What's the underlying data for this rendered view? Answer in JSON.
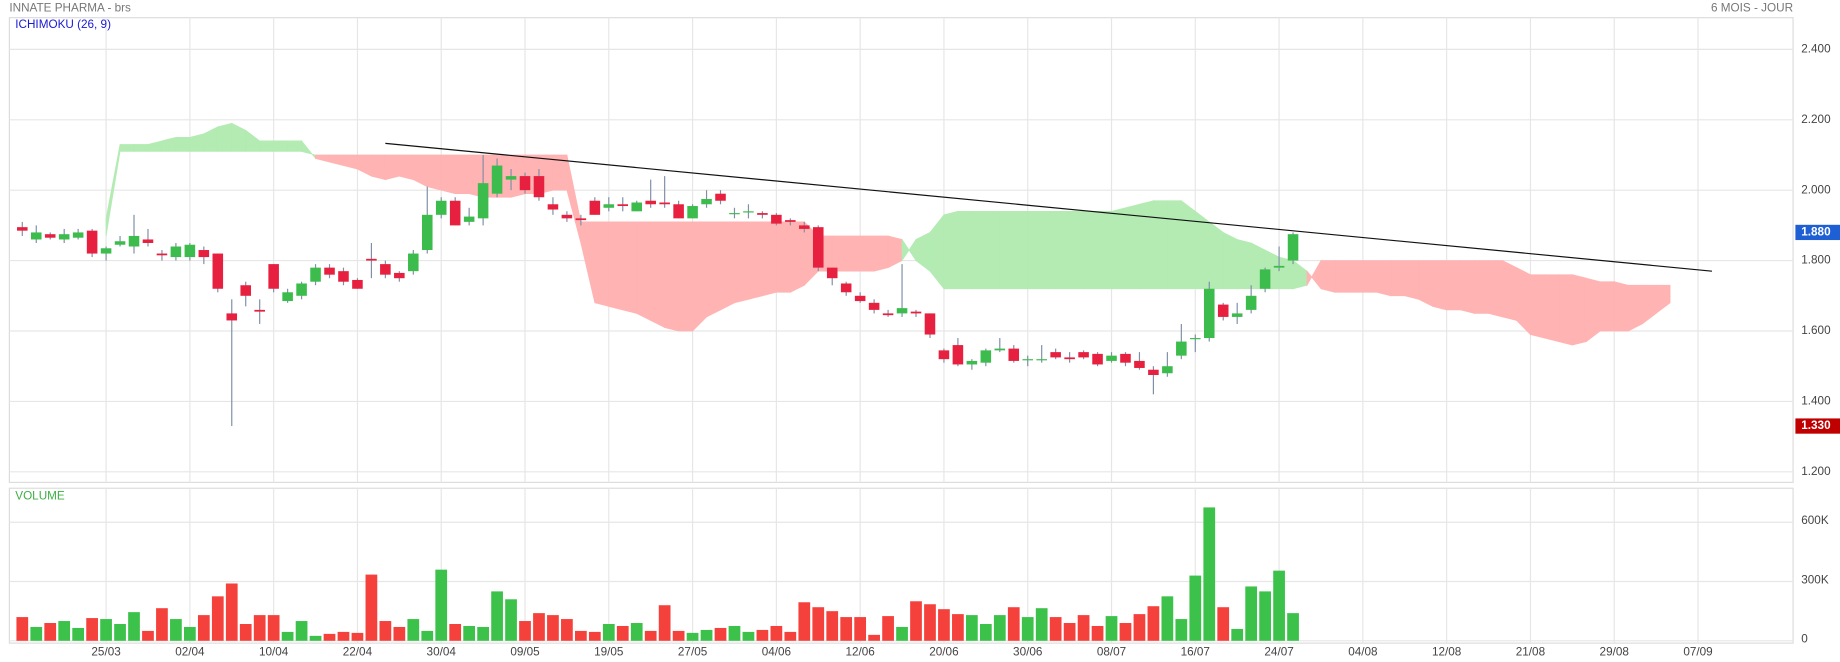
{
  "header": {
    "title": "INNATE PHARMA - brs",
    "period": "6 MOIS - JOUR"
  },
  "chart_data": {
    "type": "candlestick",
    "title": "ICHIMOKU (26, 9)",
    "categories": [
      null,
      null,
      null,
      null,
      null,
      null,
      "25/03",
      null,
      null,
      null,
      null,
      null,
      "02/04",
      null,
      null,
      null,
      null,
      null,
      "10/04",
      null,
      null,
      null,
      null,
      null,
      "22/04",
      null,
      null,
      null,
      null,
      null,
      "30/04",
      null,
      null,
      null,
      null,
      null,
      "09/05",
      null,
      null,
      null,
      null,
      null,
      "19/05",
      null,
      null,
      null,
      null,
      null,
      "27/05",
      null,
      null,
      null,
      null,
      null,
      "04/06",
      null,
      null,
      null,
      null,
      null,
      "12/06",
      null,
      null,
      null,
      null,
      null,
      "20/06",
      null,
      null,
      null,
      null,
      null,
      "30/06",
      null,
      null,
      null,
      null,
      null,
      "08/07",
      null,
      null,
      null,
      null,
      null,
      "16/07",
      null,
      null,
      null,
      null,
      null,
      "24/07",
      null,
      null,
      null,
      null,
      null,
      "04/08",
      null,
      null,
      null,
      null,
      null,
      "12/08",
      null,
      null,
      null,
      null,
      null,
      "21/08",
      null,
      null,
      null,
      null,
      null,
      "29/08",
      null,
      null,
      null,
      null,
      null,
      "07/09",
      null
    ],
    "open": [
      1.895,
      1.86,
      1.875,
      1.86,
      1.865,
      1.885,
      1.82,
      1.845,
      1.84,
      1.86,
      1.82,
      1.81,
      1.81,
      1.83,
      1.82,
      1.65,
      1.73,
      1.66,
      1.79,
      1.685,
      1.7,
      1.74,
      1.78,
      1.77,
      1.745,
      1.805,
      1.79,
      1.765,
      1.77,
      1.83,
      1.93,
      1.97,
      1.91,
      1.92,
      1.99,
      2.03,
      2.04,
      2.04,
      1.96,
      1.93,
      1.92,
      1.97,
      1.95,
      1.96,
      1.94,
      1.97,
      1.965,
      1.96,
      1.92,
      1.96,
      1.99,
      1.935,
      1.94,
      1.935,
      1.93,
      1.915,
      1.9,
      1.895,
      1.78,
      1.735,
      1.7,
      1.68,
      1.65,
      1.65,
      1.655,
      1.65,
      1.545,
      1.56,
      1.505,
      1.51,
      1.545,
      1.55,
      1.52,
      1.52,
      1.54,
      1.525,
      1.54,
      1.535,
      1.515,
      1.535,
      1.515,
      1.49,
      1.48,
      1.53,
      1.58,
      1.58,
      1.675,
      1.64,
      1.66,
      1.72,
      1.78,
      1.8,
      null,
      null,
      null,
      null,
      null,
      null,
      null,
      null,
      null,
      null,
      null,
      null,
      null,
      null,
      null,
      null,
      null,
      null,
      null,
      null,
      null,
      null,
      null,
      null,
      null,
      null,
      null,
      null,
      null,
      null
    ],
    "high": [
      1.91,
      1.9,
      1.88,
      1.89,
      1.89,
      1.89,
      1.84,
      1.87,
      1.93,
      1.89,
      1.83,
      1.85,
      1.85,
      1.84,
      1.82,
      1.69,
      1.74,
      1.69,
      1.79,
      1.72,
      1.74,
      1.79,
      1.79,
      1.78,
      1.75,
      1.85,
      1.8,
      1.77,
      1.83,
      2.01,
      1.98,
      1.98,
      1.95,
      2.1,
      2.09,
      2.06,
      2.05,
      2.06,
      1.98,
      1.94,
      1.93,
      1.98,
      1.98,
      1.98,
      1.97,
      2.03,
      2.04,
      1.97,
      1.96,
      2.0,
      2.0,
      1.95,
      1.96,
      1.94,
      1.935,
      1.92,
      1.91,
      1.9,
      1.78,
      1.74,
      1.71,
      1.69,
      1.66,
      1.79,
      1.66,
      1.65,
      1.55,
      1.58,
      1.52,
      1.55,
      1.58,
      1.56,
      1.53,
      1.56,
      1.55,
      1.54,
      1.545,
      1.54,
      1.54,
      1.54,
      1.54,
      1.5,
      1.54,
      1.62,
      1.59,
      1.74,
      1.68,
      1.68,
      1.73,
      1.78,
      1.84,
      1.88,
      null,
      null,
      null,
      null,
      null,
      null,
      null,
      null,
      null,
      null,
      null,
      null,
      null,
      null,
      null,
      null,
      null,
      null,
      null,
      null,
      null,
      null,
      null,
      null,
      null,
      null,
      null,
      null,
      null,
      null
    ],
    "low": [
      1.87,
      1.85,
      1.86,
      1.85,
      1.86,
      1.81,
      1.8,
      1.84,
      1.82,
      1.84,
      1.8,
      1.8,
      1.8,
      1.79,
      1.71,
      1.33,
      1.67,
      1.62,
      1.71,
      1.68,
      1.69,
      1.73,
      1.75,
      1.73,
      1.72,
      1.75,
      1.75,
      1.74,
      1.76,
      1.82,
      1.92,
      1.9,
      1.9,
      1.9,
      1.98,
      2.0,
      1.99,
      1.97,
      1.93,
      1.91,
      1.9,
      1.93,
      1.94,
      1.94,
      1.94,
      1.95,
      1.95,
      1.92,
      1.92,
      1.95,
      1.96,
      1.92,
      1.92,
      1.92,
      1.9,
      1.9,
      1.88,
      1.77,
      1.73,
      1.7,
      1.68,
      1.65,
      1.64,
      1.64,
      1.64,
      1.58,
      1.51,
      1.5,
      1.49,
      1.5,
      1.54,
      1.51,
      1.5,
      1.51,
      1.52,
      1.51,
      1.52,
      1.5,
      1.51,
      1.5,
      1.49,
      1.42,
      1.47,
      1.52,
      1.54,
      1.57,
      1.63,
      1.62,
      1.65,
      1.71,
      1.77,
      1.79,
      null,
      null,
      null,
      null,
      null,
      null,
      null,
      null,
      null,
      null,
      null,
      null,
      null,
      null,
      null,
      null,
      null,
      null,
      null,
      null,
      null,
      null,
      null,
      null,
      null,
      null,
      null,
      null,
      null,
      null
    ],
    "close": [
      1.885,
      1.88,
      1.865,
      1.875,
      1.88,
      1.82,
      1.835,
      1.855,
      1.87,
      1.85,
      1.815,
      1.84,
      1.845,
      1.81,
      1.72,
      1.63,
      1.7,
      1.655,
      1.72,
      1.71,
      1.735,
      1.78,
      1.76,
      1.74,
      1.72,
      1.8,
      1.76,
      1.75,
      1.82,
      1.93,
      1.97,
      1.9,
      1.925,
      2.02,
      2.07,
      2.04,
      2.0,
      1.98,
      1.945,
      1.92,
      1.915,
      1.93,
      1.96,
      1.955,
      1.965,
      1.96,
      1.96,
      1.92,
      1.955,
      1.975,
      1.97,
      1.935,
      1.94,
      1.93,
      1.905,
      1.91,
      1.89,
      1.78,
      1.75,
      1.71,
      1.685,
      1.66,
      1.645,
      1.665,
      1.65,
      1.59,
      1.52,
      1.505,
      1.515,
      1.545,
      1.55,
      1.515,
      1.52,
      1.52,
      1.525,
      1.52,
      1.525,
      1.505,
      1.53,
      1.51,
      1.495,
      1.475,
      1.5,
      1.57,
      1.58,
      1.72,
      1.64,
      1.65,
      1.7,
      1.775,
      1.785,
      1.875,
      null,
      null,
      null,
      null,
      null,
      null,
      null,
      null,
      null,
      null,
      null,
      null,
      null,
      null,
      null,
      null,
      null,
      null,
      null,
      null,
      null,
      null,
      null,
      null,
      null,
      null,
      null,
      null,
      null,
      null
    ],
    "cloud": {
      "span_a": [
        null,
        null,
        null,
        null,
        null,
        null,
        1.92,
        2.13,
        2.13,
        2.13,
        2.14,
        2.15,
        2.15,
        2.16,
        2.18,
        2.19,
        2.17,
        2.14,
        2.14,
        2.14,
        2.14,
        2.09,
        2.08,
        2.07,
        2.06,
        2.04,
        2.03,
        2.04,
        2.03,
        2.01,
        2.0,
        1.99,
        1.99,
        1.98,
        1.98,
        1.98,
        1.99,
        1.99,
        2.0,
        2.0,
        1.85,
        1.68,
        1.67,
        1.66,
        1.65,
        1.63,
        1.61,
        1.6,
        1.6,
        1.64,
        1.66,
        1.68,
        1.69,
        1.7,
        1.71,
        1.71,
        1.73,
        1.77,
        1.77,
        1.77,
        1.77,
        1.77,
        1.78,
        1.8,
        1.86,
        1.88,
        1.93,
        1.94,
        1.94,
        1.94,
        1.94,
        1.94,
        1.94,
        1.94,
        1.94,
        1.94,
        1.94,
        1.94,
        1.94,
        1.95,
        1.96,
        1.97,
        1.97,
        1.97,
        1.94,
        1.91,
        1.88,
        1.86,
        1.85,
        1.83,
        1.81,
        1.8,
        1.77,
        1.72,
        1.71,
        1.71,
        1.71,
        1.71,
        1.7,
        1.7,
        1.69,
        1.67,
        1.66,
        1.66,
        1.65,
        1.65,
        1.64,
        1.63,
        1.59,
        1.58,
        1.57,
        1.56,
        1.57,
        1.6,
        1.6,
        1.6,
        1.62,
        1.65,
        1.68,
        null,
        null,
        null
      ],
      "span_b": [
        null,
        null,
        null,
        null,
        null,
        null,
        1.87,
        2.11,
        2.11,
        2.11,
        2.11,
        2.11,
        2.11,
        2.11,
        2.11,
        2.11,
        2.11,
        2.11,
        2.11,
        2.11,
        2.11,
        2.1,
        2.1,
        2.1,
        2.1,
        2.1,
        2.1,
        2.1,
        2.1,
        2.1,
        2.1,
        2.1,
        2.1,
        2.1,
        2.1,
        2.1,
        2.1,
        2.1,
        2.1,
        2.1,
        1.91,
        1.91,
        1.91,
        1.91,
        1.91,
        1.91,
        1.91,
        1.91,
        1.91,
        1.91,
        1.91,
        1.91,
        1.91,
        1.91,
        1.91,
        1.91,
        1.91,
        1.87,
        1.87,
        1.87,
        1.87,
        1.87,
        1.87,
        1.86,
        1.8,
        1.77,
        1.72,
        1.72,
        1.72,
        1.72,
        1.72,
        1.72,
        1.72,
        1.72,
        1.72,
        1.72,
        1.72,
        1.72,
        1.72,
        1.72,
        1.72,
        1.72,
        1.72,
        1.72,
        1.72,
        1.72,
        1.72,
        1.72,
        1.72,
        1.72,
        1.72,
        1.72,
        1.73,
        1.8,
        1.8,
        1.8,
        1.8,
        1.8,
        1.8,
        1.8,
        1.8,
        1.8,
        1.8,
        1.8,
        1.8,
        1.8,
        1.8,
        1.78,
        1.76,
        1.76,
        1.76,
        1.76,
        1.75,
        1.74,
        1.74,
        1.73,
        1.73,
        1.73,
        1.73,
        null,
        null,
        null
      ]
    },
    "colors": {
      "up": "#3cbc4c",
      "down": "#e8203f",
      "cloud_up": "#b3ebb3",
      "cloud_down": "#ffb3b3",
      "trendline": "#111111"
    },
    "ylim": [
      1.17,
      2.49
    ],
    "yticks": [
      {
        "value": 1.2,
        "label": "1.200"
      },
      {
        "value": 1.4,
        "label": "1.400"
      },
      {
        "value": 1.6,
        "label": "1.600"
      },
      {
        "value": 1.8,
        "label": "1.800"
      },
      {
        "value": 2.0,
        "label": "2.000"
      },
      {
        "value": 2.2,
        "label": "2.200"
      },
      {
        "value": 2.4,
        "label": "2.400"
      }
    ],
    "grid": true,
    "trendline": {
      "x": [
        26,
        121
      ],
      "y": [
        2.133,
        1.77
      ]
    },
    "annotations": [
      {
        "label": "1.880",
        "value": 1.88,
        "color": "#1f5fd4"
      },
      {
        "label": "1.330",
        "value": 1.33,
        "color": "#c00000"
      }
    ],
    "volume": {
      "title": "VOLUME",
      "values": [
        120000,
        70000,
        90000,
        100000,
        65000,
        115000,
        110000,
        85000,
        145000,
        50000,
        165000,
        110000,
        70000,
        130000,
        225000,
        290000,
        85000,
        130000,
        130000,
        45000,
        100000,
        25000,
        35000,
        45000,
        40000,
        335000,
        100000,
        70000,
        110000,
        50000,
        360000,
        85000,
        75000,
        70000,
        250000,
        210000,
        100000,
        140000,
        130000,
        110000,
        50000,
        45000,
        85000,
        75000,
        90000,
        50000,
        180000,
        50000,
        40000,
        55000,
        65000,
        75000,
        45000,
        55000,
        75000,
        45000,
        195000,
        170000,
        150000,
        120000,
        120000,
        30000,
        125000,
        70000,
        200000,
        185000,
        160000,
        135000,
        130000,
        85000,
        130000,
        170000,
        120000,
        165000,
        120000,
        90000,
        130000,
        75000,
        125000,
        90000,
        135000,
        175000,
        225000,
        110000,
        330000,
        675000,
        170000,
        60000,
        275000,
        250000,
        355000,
        140000,
        null,
        null,
        null,
        null,
        null,
        null,
        null,
        null,
        null,
        null,
        null,
        null,
        null,
        null,
        null,
        null,
        null,
        null,
        null,
        null,
        null,
        null,
        null,
        null,
        null,
        null,
        null,
        null,
        null,
        null
      ],
      "ylim": [
        0,
        772000
      ],
      "yticks": [
        0,
        {
          "value": 300000,
          "label": "300K"
        },
        {
          "value": 600000,
          "label": "600K"
        }
      ]
    }
  }
}
